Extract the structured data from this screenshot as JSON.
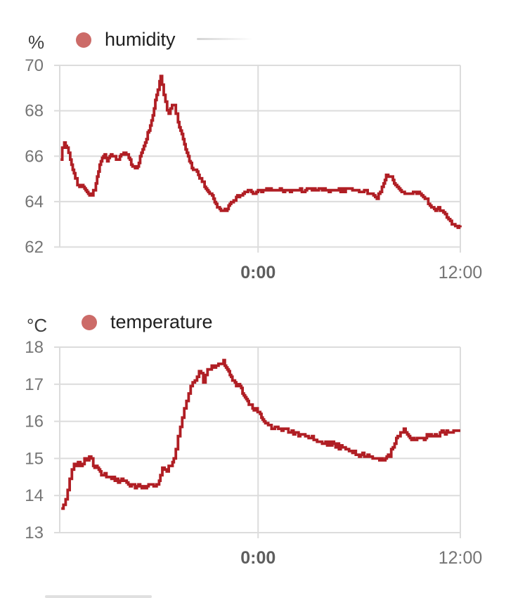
{
  "page": {
    "background_color": "#ffffff"
  },
  "chart_data": [
    {
      "type": "line",
      "title": "humidity",
      "unit": "%",
      "series_color": "#b01e24",
      "legend_dot_color": "#cc6b68",
      "grid": true,
      "legend_position": "top-left",
      "x_axis": {
        "tmin": -11.77,
        "tmax": 12,
        "ticks": [
          {
            "label": "0:00",
            "t": 0,
            "bold": true
          },
          {
            "label": "12:00",
            "t": 12,
            "bold": false
          }
        ]
      },
      "y_axis": {
        "ticks": [
          70,
          68,
          66,
          64,
          62
        ],
        "ymin": 62,
        "ymax": 70
      },
      "points": [
        [
          -11.72,
          65.9
        ],
        [
          -11.62,
          66.35
        ],
        [
          -11.5,
          66.55
        ],
        [
          -11.35,
          66.4
        ],
        [
          -11.15,
          65.9
        ],
        [
          -11.0,
          65.45
        ],
        [
          -10.85,
          64.95
        ],
        [
          -10.72,
          64.75
        ],
        [
          -10.6,
          64.65
        ],
        [
          -10.45,
          64.75
        ],
        [
          -10.3,
          64.55
        ],
        [
          -10.15,
          64.4
        ],
        [
          -10.0,
          64.3
        ],
        [
          -9.85,
          64.35
        ],
        [
          -9.7,
          64.5
        ],
        [
          -9.55,
          65.1
        ],
        [
          -9.4,
          65.6
        ],
        [
          -9.25,
          65.95
        ],
        [
          -9.1,
          66.0
        ],
        [
          -8.95,
          65.85
        ],
        [
          -8.8,
          65.95
        ],
        [
          -8.65,
          66.05
        ],
        [
          -8.5,
          65.95
        ],
        [
          -8.35,
          65.85
        ],
        [
          -8.2,
          65.95
        ],
        [
          -8.05,
          66.1
        ],
        [
          -7.9,
          66.15
        ],
        [
          -7.75,
          66.05
        ],
        [
          -7.6,
          65.85
        ],
        [
          -7.45,
          65.55
        ],
        [
          -7.3,
          65.45
        ],
        [
          -7.15,
          65.6
        ],
        [
          -7.0,
          65.95
        ],
        [
          -6.85,
          66.3
        ],
        [
          -6.7,
          66.65
        ],
        [
          -6.55,
          67.0
        ],
        [
          -6.4,
          67.4
        ],
        [
          -6.25,
          67.8
        ],
        [
          -6.1,
          68.4
        ],
        [
          -5.95,
          69.0
        ],
        [
          -5.85,
          69.3
        ],
        [
          -5.78,
          69.45
        ],
        [
          -5.7,
          69.15
        ],
        [
          -5.6,
          68.75
        ],
        [
          -5.5,
          68.4
        ],
        [
          -5.4,
          68.05
        ],
        [
          -5.3,
          67.9
        ],
        [
          -5.2,
          68.1
        ],
        [
          -5.1,
          68.3
        ],
        [
          -5.0,
          68.2
        ],
        [
          -4.88,
          67.85
        ],
        [
          -4.75,
          67.5
        ],
        [
          -4.6,
          67.1
        ],
        [
          -4.45,
          66.7
        ],
        [
          -4.3,
          66.3
        ],
        [
          -4.15,
          65.95
        ],
        [
          -4.0,
          65.65
        ],
        [
          -3.85,
          65.45
        ],
        [
          -3.7,
          65.35
        ],
        [
          -3.55,
          65.2
        ],
        [
          -3.4,
          65.0
        ],
        [
          -3.25,
          64.8
        ],
        [
          -3.1,
          64.55
        ],
        [
          -2.95,
          64.4
        ],
        [
          -2.8,
          64.3
        ],
        [
          -2.65,
          64.1
        ],
        [
          -2.5,
          63.9
        ],
        [
          -2.35,
          63.7
        ],
        [
          -2.2,
          63.6
        ],
        [
          -2.05,
          63.55
        ],
        [
          -1.9,
          63.65
        ],
        [
          -1.75,
          63.8
        ],
        [
          -1.6,
          63.95
        ],
        [
          -1.45,
          64.05
        ],
        [
          -1.3,
          64.15
        ],
        [
          -1.15,
          64.25
        ],
        [
          -1.0,
          64.3
        ],
        [
          -0.8,
          64.4
        ],
        [
          -0.6,
          64.45
        ],
        [
          -0.4,
          64.4
        ],
        [
          -0.2,
          64.35
        ],
        [
          0.0,
          64.45
        ],
        [
          0.3,
          64.5
        ],
        [
          0.6,
          64.55
        ],
        [
          0.9,
          64.5
        ],
        [
          1.2,
          64.55
        ],
        [
          1.5,
          64.5
        ],
        [
          1.8,
          64.5
        ],
        [
          2.1,
          64.55
        ],
        [
          2.4,
          64.5
        ],
        [
          2.7,
          64.5
        ],
        [
          3.0,
          64.55
        ],
        [
          3.3,
          64.5
        ],
        [
          3.6,
          64.5
        ],
        [
          3.9,
          64.55
        ],
        [
          4.2,
          64.5
        ],
        [
          4.5,
          64.55
        ],
        [
          4.8,
          64.5
        ],
        [
          5.1,
          64.5
        ],
        [
          5.4,
          64.55
        ],
        [
          5.7,
          64.5
        ],
        [
          6.0,
          64.45
        ],
        [
          6.3,
          64.45
        ],
        [
          6.6,
          64.4
        ],
        [
          6.85,
          64.25
        ],
        [
          7.05,
          64.2
        ],
        [
          7.25,
          64.45
        ],
        [
          7.45,
          64.85
        ],
        [
          7.6,
          65.1
        ],
        [
          7.72,
          65.17
        ],
        [
          7.85,
          65.1
        ],
        [
          8.0,
          64.95
        ],
        [
          8.15,
          64.75
        ],
        [
          8.35,
          64.55
        ],
        [
          8.6,
          64.4
        ],
        [
          8.9,
          64.35
        ],
        [
          9.2,
          64.4
        ],
        [
          9.5,
          64.35
        ],
        [
          9.8,
          64.2
        ],
        [
          10.0,
          64.1
        ],
        [
          10.2,
          63.8
        ],
        [
          10.45,
          63.65
        ],
        [
          10.7,
          63.7
        ],
        [
          10.9,
          63.55
        ],
        [
          11.1,
          63.4
        ],
        [
          11.3,
          63.25
        ],
        [
          11.5,
          63.05
        ],
        [
          11.7,
          62.95
        ],
        [
          11.85,
          62.9
        ],
        [
          12.0,
          62.95
        ]
      ]
    },
    {
      "type": "line",
      "title": "temperature",
      "unit": "°C",
      "series_color": "#b01e24",
      "legend_dot_color": "#cc6b68",
      "grid": true,
      "legend_position": "top-left",
      "x_axis": {
        "tmin": -11.77,
        "tmax": 12,
        "ticks": [
          {
            "label": "0:00",
            "t": 0,
            "bold": true
          },
          {
            "label": "12:00",
            "t": 12,
            "bold": false
          }
        ]
      },
      "y_axis": {
        "ticks": [
          18,
          17,
          16,
          15,
          14,
          13
        ],
        "ymin": 13,
        "ymax": 18
      },
      "points": [
        [
          -11.68,
          13.7
        ],
        [
          -11.55,
          13.78
        ],
        [
          -11.42,
          13.95
        ],
        [
          -11.3,
          14.2
        ],
        [
          -11.18,
          14.45
        ],
        [
          -11.05,
          14.7
        ],
        [
          -10.92,
          14.85
        ],
        [
          -10.8,
          14.8
        ],
        [
          -10.68,
          14.9
        ],
        [
          -10.55,
          14.85
        ],
        [
          -10.42,
          14.9
        ],
        [
          -10.3,
          14.95
        ],
        [
          -10.15,
          15.0
        ],
        [
          -10.02,
          15.05
        ],
        [
          -9.9,
          14.95
        ],
        [
          -9.78,
          14.85
        ],
        [
          -9.62,
          14.75
        ],
        [
          -9.45,
          14.65
        ],
        [
          -9.3,
          14.6
        ],
        [
          -9.1,
          14.55
        ],
        [
          -8.9,
          14.5
        ],
        [
          -8.7,
          14.5
        ],
        [
          -8.5,
          14.45
        ],
        [
          -8.3,
          14.42
        ],
        [
          -8.1,
          14.38
        ],
        [
          -7.9,
          14.35
        ],
        [
          -7.7,
          14.3
        ],
        [
          -7.5,
          14.27
        ],
        [
          -7.3,
          14.25
        ],
        [
          -7.1,
          14.3
        ],
        [
          -6.9,
          14.25
        ],
        [
          -6.7,
          14.22
        ],
        [
          -6.5,
          14.25
        ],
        [
          -6.3,
          14.3
        ],
        [
          -6.1,
          14.25
        ],
        [
          -5.95,
          14.3
        ],
        [
          -5.8,
          14.55
        ],
        [
          -5.68,
          14.72
        ],
        [
          -5.55,
          14.75
        ],
        [
          -5.42,
          14.7
        ],
        [
          -5.3,
          14.75
        ],
        [
          -5.15,
          14.8
        ],
        [
          -5.0,
          15.0
        ],
        [
          -4.88,
          15.25
        ],
        [
          -4.75,
          15.55
        ],
        [
          -4.62,
          15.85
        ],
        [
          -4.5,
          16.1
        ],
        [
          -4.38,
          16.35
        ],
        [
          -4.25,
          16.55
        ],
        [
          -4.12,
          16.75
        ],
        [
          -4.0,
          16.9
        ],
        [
          -3.88,
          17.0
        ],
        [
          -3.75,
          17.1
        ],
        [
          -3.62,
          17.2
        ],
        [
          -3.5,
          17.3
        ],
        [
          -3.38,
          17.25
        ],
        [
          -3.25,
          17.1
        ],
        [
          -3.12,
          17.2
        ],
        [
          -3.0,
          17.35
        ],
        [
          -2.88,
          17.45
        ],
        [
          -2.75,
          17.5
        ],
        [
          -2.62,
          17.45
        ],
        [
          -2.5,
          17.5
        ],
        [
          -2.35,
          17.52
        ],
        [
          -2.2,
          17.58
        ],
        [
          -2.05,
          17.6
        ],
        [
          -1.9,
          17.5
        ],
        [
          -1.75,
          17.35
        ],
        [
          -1.6,
          17.2
        ],
        [
          -1.45,
          17.1
        ],
        [
          -1.3,
          16.95
        ],
        [
          -1.15,
          16.98
        ],
        [
          -1.0,
          16.85
        ],
        [
          -0.85,
          16.7
        ],
        [
          -0.7,
          16.6
        ],
        [
          -0.55,
          16.5
        ],
        [
          -0.4,
          16.42
        ],
        [
          -0.25,
          16.36
        ],
        [
          -0.1,
          16.3
        ],
        [
          0.05,
          16.22
        ],
        [
          0.2,
          16.1
        ],
        [
          0.35,
          16.0
        ],
        [
          0.6,
          15.9
        ],
        [
          0.9,
          15.8
        ],
        [
          1.2,
          15.8
        ],
        [
          1.6,
          15.78
        ],
        [
          2.0,
          15.72
        ],
        [
          2.4,
          15.65
        ],
        [
          2.8,
          15.6
        ],
        [
          3.2,
          15.55
        ],
        [
          3.6,
          15.45
        ],
        [
          4.0,
          15.42
        ],
        [
          4.4,
          15.38
        ],
        [
          4.8,
          15.32
        ],
        [
          5.2,
          15.25
        ],
        [
          5.5,
          15.2
        ],
        [
          5.8,
          15.12
        ],
        [
          6.1,
          15.1
        ],
        [
          6.4,
          15.08
        ],
        [
          6.7,
          15.02
        ],
        [
          7.0,
          15.0
        ],
        [
          7.3,
          14.98
        ],
        [
          7.55,
          15.02
        ],
        [
          7.8,
          15.1
        ],
        [
          8.0,
          15.3
        ],
        [
          8.2,
          15.5
        ],
        [
          8.45,
          15.68
        ],
        [
          8.65,
          15.78
        ],
        [
          8.85,
          15.65
        ],
        [
          9.1,
          15.5
        ],
        [
          9.35,
          15.52
        ],
        [
          9.6,
          15.55
        ],
        [
          9.85,
          15.55
        ],
        [
          10.1,
          15.6
        ],
        [
          10.4,
          15.58
        ],
        [
          10.7,
          15.65
        ],
        [
          10.9,
          15.78
        ],
        [
          11.1,
          15.68
        ],
        [
          11.35,
          15.72
        ],
        [
          11.6,
          15.7
        ],
        [
          11.8,
          15.72
        ],
        [
          12.0,
          15.75
        ]
      ]
    }
  ],
  "style": {
    "grid_color": "#dcdcdc",
    "tick_text_color": "#757575",
    "bold_tick_text_color": "#5e5e5e",
    "unit_text_color": "#3d3d3d",
    "legend_text_color": "#1f1f1f"
  }
}
